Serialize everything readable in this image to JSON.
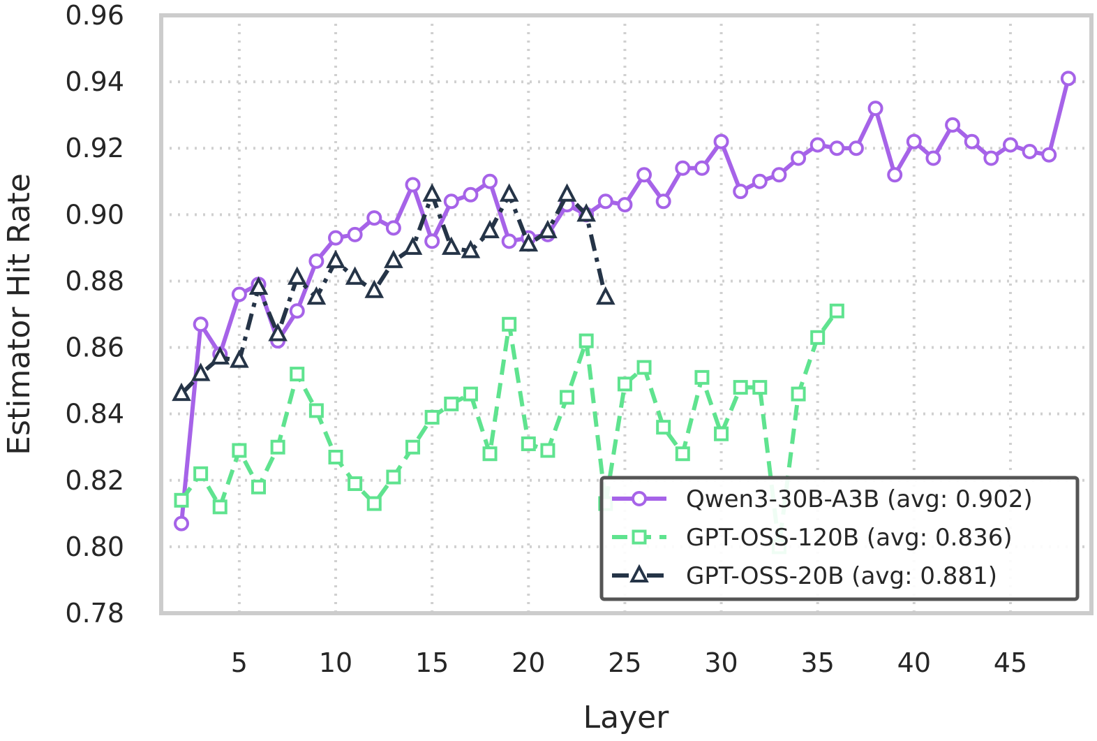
{
  "chart_data": {
    "type": "line",
    "title": "",
    "xlabel": "Layer",
    "ylabel": "Estimator Hit Rate",
    "xlim": [
      0.95,
      49.2
    ],
    "ylim": [
      0.78,
      0.96
    ],
    "x_ticks": [
      5,
      10,
      15,
      20,
      25,
      30,
      35,
      40,
      45
    ],
    "y_ticks": [
      0.78,
      0.8,
      0.82,
      0.84,
      0.86,
      0.88,
      0.9,
      0.92,
      0.94,
      0.96
    ],
    "x_tick_labels": [
      "5",
      "10",
      "15",
      "20",
      "25",
      "30",
      "35",
      "40",
      "45"
    ],
    "y_tick_labels": [
      "0.78",
      "0.80",
      "0.82",
      "0.84",
      "0.86",
      "0.88",
      "0.90",
      "0.92",
      "0.94",
      "0.96"
    ],
    "grid": true,
    "legend_position": "lower-right",
    "series": [
      {
        "name": "Qwen3-30B-A3B (avg: 0.902)",
        "color": "#a663e8",
        "marker": "circle",
        "linestyle": "solid",
        "x": [
          2,
          3,
          4,
          5,
          6,
          7,
          8,
          9,
          10,
          11,
          12,
          13,
          14,
          15,
          16,
          17,
          18,
          19,
          20,
          21,
          22,
          23,
          24,
          25,
          26,
          27,
          28,
          29,
          30,
          31,
          32,
          33,
          34,
          35,
          36,
          37,
          38,
          39,
          40,
          41,
          42,
          43,
          44,
          45,
          46,
          47,
          48
        ],
        "y": [
          0.807,
          0.867,
          0.858,
          0.876,
          0.879,
          0.862,
          0.871,
          0.886,
          0.893,
          0.894,
          0.899,
          0.896,
          0.909,
          0.892,
          0.904,
          0.906,
          0.91,
          0.892,
          0.893,
          0.894,
          0.903,
          0.9,
          0.904,
          0.903,
          0.912,
          0.904,
          0.914,
          0.914,
          0.922,
          0.907,
          0.91,
          0.912,
          0.917,
          0.921,
          0.92,
          0.92,
          0.932,
          0.912,
          0.922,
          0.917,
          0.927,
          0.922,
          0.917,
          0.921,
          0.919,
          0.918,
          0.941
        ]
      },
      {
        "name": "GPT-OSS-120B (avg: 0.836)",
        "color": "#5fe38f",
        "marker": "square",
        "linestyle": "dashed",
        "x": [
          2,
          3,
          4,
          5,
          6,
          7,
          8,
          9,
          10,
          11,
          12,
          13,
          14,
          15,
          16,
          17,
          18,
          19,
          20,
          21,
          22,
          23,
          24,
          25,
          26,
          27,
          28,
          29,
          30,
          31,
          32,
          33,
          34,
          35,
          36
        ],
        "y": [
          0.814,
          0.822,
          0.812,
          0.829,
          0.818,
          0.83,
          0.852,
          0.841,
          0.827,
          0.819,
          0.813,
          0.821,
          0.83,
          0.839,
          0.843,
          0.846,
          0.828,
          0.867,
          0.831,
          0.829,
          0.845,
          0.862,
          0.813,
          0.849,
          0.854,
          0.836,
          0.828,
          0.851,
          0.834,
          0.848,
          0.848,
          0.8,
          0.846,
          0.863,
          0.871
        ]
      },
      {
        "name": "GPT-OSS-20B (avg: 0.881)",
        "color": "#253447",
        "marker": "triangle",
        "linestyle": "dashdot",
        "x": [
          2,
          3,
          4,
          5,
          6,
          7,
          8,
          9,
          10,
          11,
          12,
          13,
          14,
          15,
          16,
          17,
          18,
          19,
          20,
          21,
          22,
          23,
          24
        ],
        "y": [
          0.846,
          0.852,
          0.857,
          0.856,
          0.878,
          0.864,
          0.881,
          0.875,
          0.886,
          0.881,
          0.877,
          0.886,
          0.89,
          0.906,
          0.89,
          0.889,
          0.895,
          0.906,
          0.891,
          0.895,
          0.906,
          0.9,
          0.875
        ]
      }
    ]
  }
}
